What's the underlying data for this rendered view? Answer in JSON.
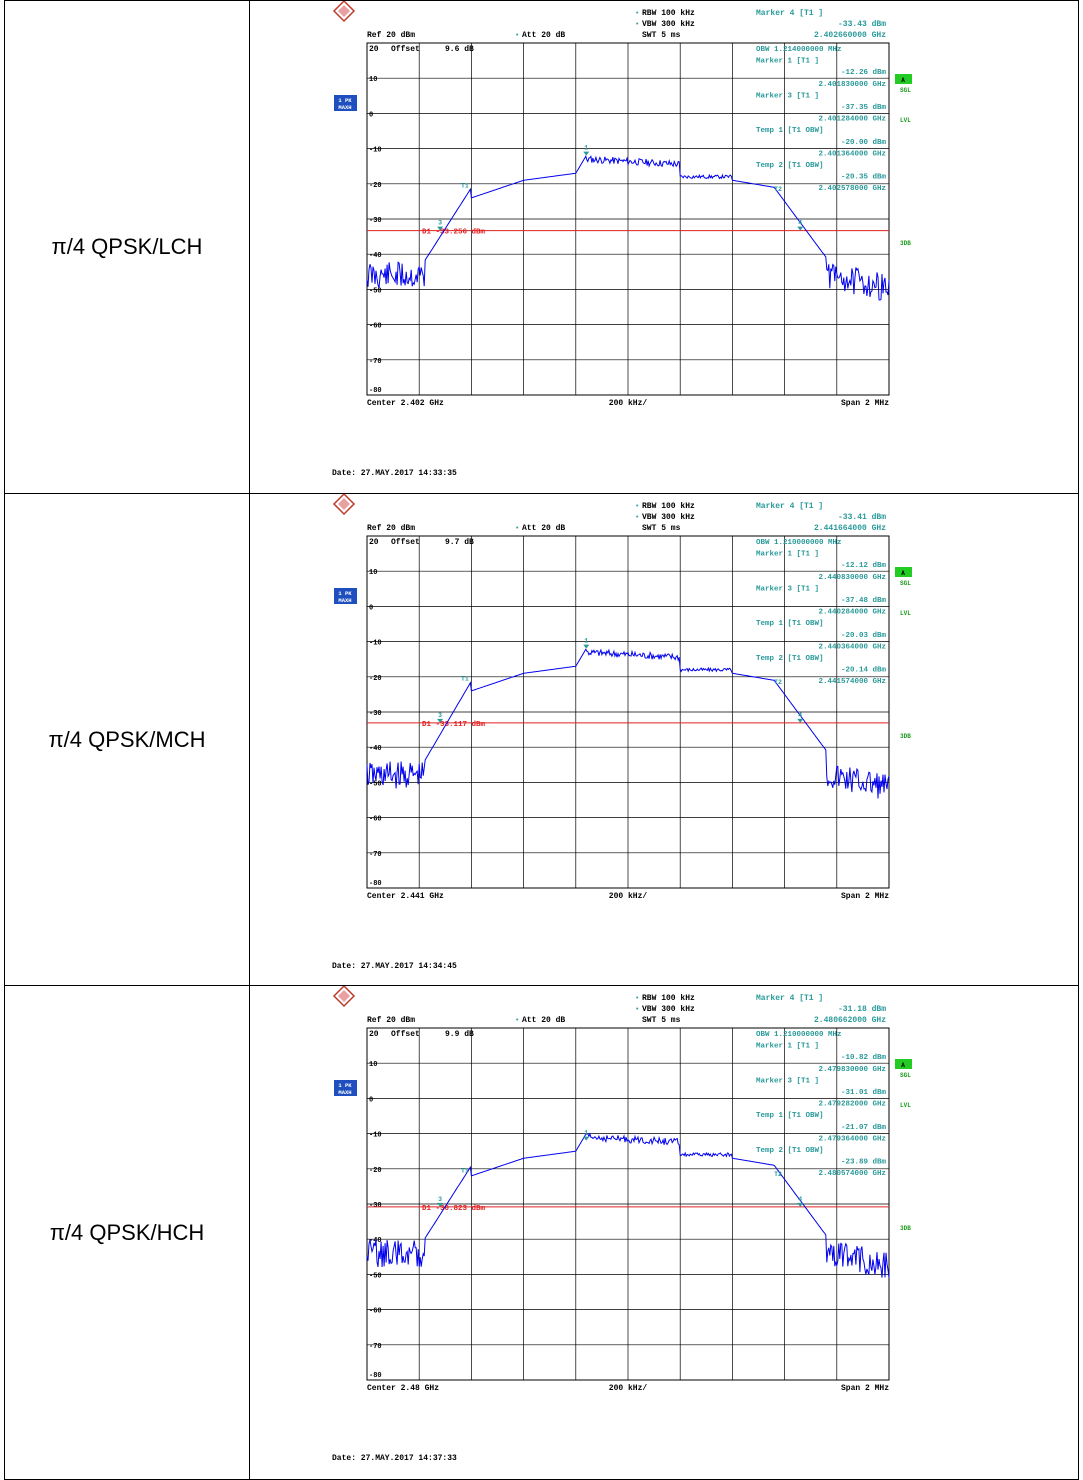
{
  "rows": [
    {
      "label": "π/4 QPSK/LCH",
      "rbw": "RBW 100 kHz",
      "vbw": "VBW 300 kHz",
      "swt": "SWT 5 ms",
      "ref": "Ref  20 dBm",
      "att": "Att  20 dB",
      "offset_label": "Offset",
      "offset_value": "9.6 dB",
      "marker_header": "Marker 4 [T1 ]",
      "marker_lines": [
        "-33.43 dBm",
        "2.402660000 GHz",
        "OBW  1.214000000 MHz",
        "Marker 1 [T1 ]",
        "-12.26 dBm",
        "2.401830000 GHz",
        "Marker 3 [T1 ]",
        "-37.35 dBm",
        "2.401284000 GHz",
        "Temp 1 [T1 OBW]",
        "-20.00 dBm",
        "2.401364000 GHz",
        "Temp 2 [T1 OBW]",
        "-20.35 dBm",
        "2.402578000 GHz"
      ],
      "d1_label": "D1 -33.256 dBm",
      "center": "Center  2.402 GHz",
      "per_div": "200 kHz/",
      "span": "Span  2 MHz",
      "date": "Date: 27.MAY.2017  14:33:35",
      "d1_level_db": -33.3,
      "floor_db": -42
    },
    {
      "label": "π/4 QPSK/MCH",
      "rbw": "RBW 100 kHz",
      "vbw": "VBW 300 kHz",
      "swt": "SWT 5 ms",
      "ref": "Ref  20 dBm",
      "att": "Att  20 dB",
      "offset_label": "Offset",
      "offset_value": "9.7 dB",
      "marker_header": "Marker 4 [T1 ]",
      "marker_lines": [
        "-33.41 dBm",
        "2.441664000 GHz",
        "OBW  1.210000000 MHz",
        "Marker 1 [T1 ]",
        "-12.12 dBm",
        "2.440830000 GHz",
        "Marker 3 [T1 ]",
        "-37.48 dBm",
        "2.440284000 GHz",
        "Temp 1 [T1 OBW]",
        "-20.03 dBm",
        "2.440364000 GHz",
        "Temp 2 [T1 OBW]",
        "-20.14 dBm",
        "2.441574000 GHz"
      ],
      "d1_label": "D1 -33.117 dBm",
      "center": "Center  2.441 GHz",
      "per_div": "200 kHz/",
      "span": "Span  2 MHz",
      "date": "Date: 27.MAY.2017  14:34:45",
      "d1_level_db": -33.1,
      "floor_db": -44
    },
    {
      "label": "π/4 QPSK/HCH",
      "rbw": "RBW 100 kHz",
      "vbw": "VBW 300 kHz",
      "swt": "SWT 5 ms",
      "ref": "Ref  20 dBm",
      "att": "Att  20 dB",
      "offset_label": "Offset",
      "offset_value": "9.9 dB",
      "marker_header": "Marker 4 [T1 ]",
      "marker_lines": [
        "-31.18 dBm",
        "2.480662000 GHz",
        "OBW  1.210000000 MHz",
        "Marker 1 [T1 ]",
        "-10.82 dBm",
        "2.479830000 GHz",
        "Marker 3 [T1 ]",
        "-31.01 dBm",
        "2.479282000 GHz",
        "Temp 1 [T1 OBW]",
        "-21.07 dBm",
        "2.479364000 GHz",
        "Temp 2 [T1 OBW]",
        "-23.89 dBm",
        "2.480574000 GHz"
      ],
      "d1_label": "D1 -30.823 dBm",
      "center": "Center  2.48 GHz",
      "per_div": "200 kHz/",
      "span": "Span  2 MHz",
      "date": "Date: 27.MAY.2017  14:37:33",
      "d1_level_db": -30.8,
      "floor_db": -42
    }
  ],
  "ylabels": [
    "20",
    "10",
    "0",
    "-10",
    "-20",
    "-30",
    "-40",
    "-50",
    "-60",
    "-70",
    "-80"
  ],
  "side_labels": {
    "trace": "1 PK",
    "mode": "MAXH",
    "a": "A",
    "sgl": "SGL",
    "lvl": "LVL",
    "three_db": "3DB"
  },
  "marker_tags": {
    "t1": "T1",
    "t2": "T2",
    "m1": "1",
    "m3": "3",
    "m4": "4"
  },
  "colors": {
    "trace": "#0000ee",
    "display_line": "#e02020",
    "annotation": "#2a9a9a",
    "grid": "#000000",
    "badge_bg": "#1f4fbf",
    "status_green": "#22cc22"
  }
}
